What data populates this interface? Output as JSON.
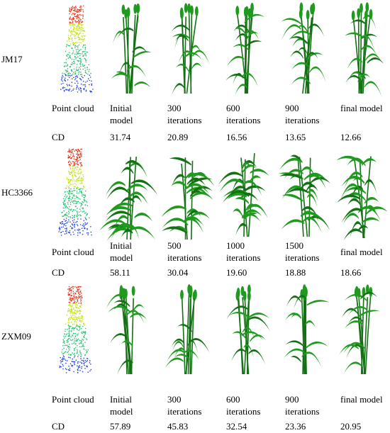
{
  "rows": [
    {
      "cultivar": "JM17",
      "stage_labels": [
        "Point cloud",
        "Initial\nmodel",
        "300\niterations",
        "600\niterations",
        "900\niterations",
        "final model"
      ],
      "cd_label": "CD",
      "cd_values": [
        "31.74",
        "20.89",
        "16.56",
        "13.65",
        "12.66"
      ]
    },
    {
      "cultivar": "HC3366",
      "stage_labels": [
        "Point cloud",
        "Initial\nmodel",
        "500\niterations",
        "1000\niterations",
        "1500\niterations",
        "final model"
      ],
      "cd_label": "CD",
      "cd_values": [
        "58.11",
        "30.04",
        "19.60",
        "18.88",
        "18.66"
      ]
    },
    {
      "cultivar": "ZXM09",
      "stage_labels": [
        "Point cloud",
        "Initial\nmodel",
        "300\niterations",
        "600\niterations",
        "900\niterations",
        "final model"
      ],
      "cd_label": "CD",
      "cd_values": [
        "57.89",
        "45.83",
        "32.54",
        "23.36",
        "20.95"
      ]
    }
  ],
  "colors": {
    "leaf": "#1f9a1f",
    "leaf_dark": "#137013",
    "cloud_top": "#e8361c",
    "cloud_mid": "#c8e020",
    "cloud_low": "#20c070",
    "cloud_base": "#2040d0"
  }
}
